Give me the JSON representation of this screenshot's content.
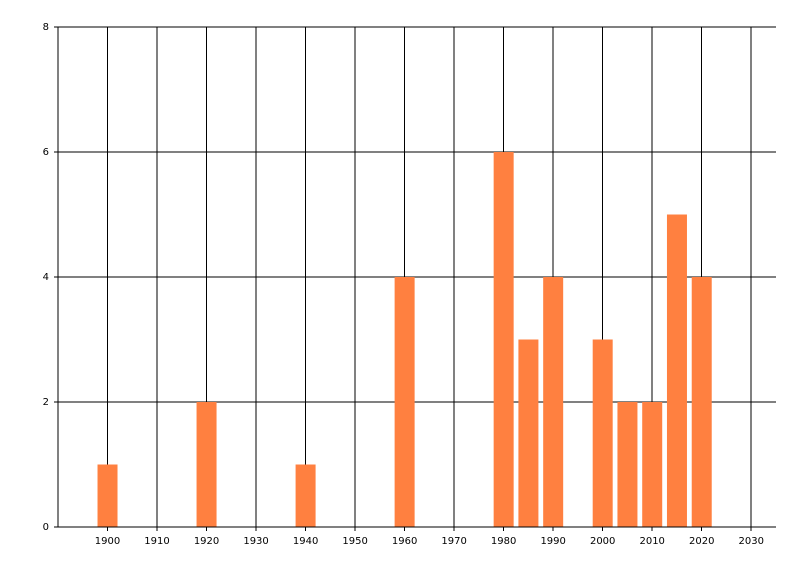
{
  "chart_data": {
    "type": "bar",
    "x": [
      1900,
      1920,
      1940,
      1960,
      1980,
      1985,
      1990,
      2000,
      2005,
      2010,
      2015,
      2020
    ],
    "values": [
      1,
      2,
      1,
      4,
      6,
      3,
      4,
      3,
      2,
      2,
      5,
      4
    ],
    "color": "#ff8040",
    "xlim": [
      1890,
      2035
    ],
    "xticks": [
      1900,
      1910,
      1920,
      1930,
      1940,
      1950,
      1960,
      1970,
      1980,
      1990,
      2000,
      2010,
      2020,
      2030
    ],
    "ylim": [
      0,
      8
    ],
    "yticks": [
      0,
      2,
      4,
      6,
      8
    ],
    "grid": true
  }
}
